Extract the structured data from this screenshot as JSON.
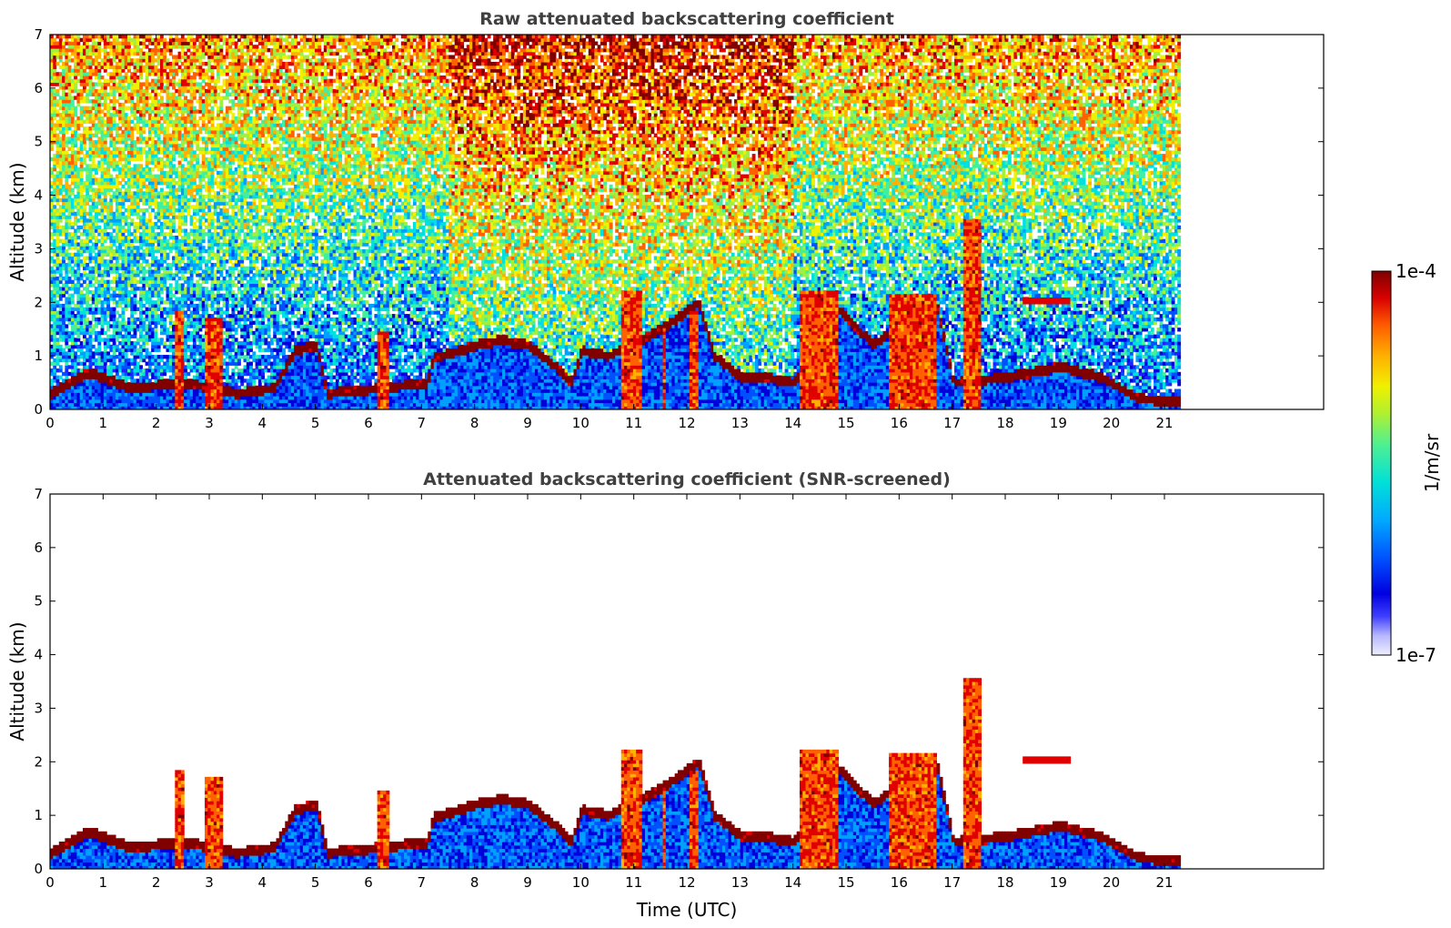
{
  "chart_data": [
    {
      "type": "heatmap",
      "title": "Raw attenuated backscattering coefficient",
      "xlabel": "",
      "ylabel": "Altitude (km)",
      "xlim": [
        0,
        24
      ],
      "ylim": [
        0,
        7
      ],
      "x_ticks": [
        "0",
        "1",
        "2",
        "3",
        "4",
        "5",
        "6",
        "7",
        "8",
        "9",
        "10",
        "11",
        "12",
        "13",
        "14",
        "15",
        "16",
        "17",
        "18",
        "19",
        "20",
        "21"
      ],
      "y_ticks": [
        "0",
        "1",
        "2",
        "3",
        "4",
        "5",
        "6",
        "7"
      ],
      "data_end_time": 21.3,
      "screened": false,
      "boundary_layer_top_km": [
        [
          0,
          0.3
        ],
        [
          0.7,
          0.7
        ],
        [
          1.5,
          0.4
        ],
        [
          2.5,
          0.5
        ],
        [
          3.5,
          0.3
        ],
        [
          4.2,
          0.4
        ],
        [
          4.6,
          1.1
        ],
        [
          5,
          1.2
        ],
        [
          5.2,
          0.3
        ],
        [
          6.2,
          0.4
        ],
        [
          7.1,
          0.5
        ],
        [
          7.2,
          0.95
        ],
        [
          8,
          1.2
        ],
        [
          8.5,
          1.3
        ],
        [
          9,
          1.2
        ],
        [
          9.5,
          0.8
        ],
        [
          9.8,
          0.5
        ],
        [
          10,
          1.1
        ],
        [
          10.5,
          1.0
        ],
        [
          11.5,
          1.5
        ],
        [
          12.2,
          2.0
        ],
        [
          12.5,
          1.0
        ],
        [
          13,
          0.6
        ],
        [
          13.5,
          0.6
        ],
        [
          14,
          0.5
        ],
        [
          14.8,
          1.9
        ],
        [
          15.5,
          1.2
        ],
        [
          16,
          1.6
        ],
        [
          16.7,
          1.9
        ],
        [
          17,
          0.5
        ],
        [
          18,
          0.6
        ],
        [
          19,
          0.8
        ],
        [
          19.8,
          0.6
        ],
        [
          20.5,
          0.2
        ],
        [
          21.3,
          0.15
        ]
      ],
      "convective_plumes": [
        {
          "t0": 2.3,
          "t1": 2.5,
          "top_km": 1.8
        },
        {
          "t0": 2.9,
          "t1": 3.2,
          "top_km": 1.7
        },
        {
          "t0": 6.15,
          "t1": 6.35,
          "top_km": 1.4
        },
        {
          "t0": 10.75,
          "t1": 11.15,
          "top_km": 2.2
        },
        {
          "t0": 11.5,
          "t1": 11.6,
          "top_km": 1.5
        },
        {
          "t0": 12.0,
          "t1": 12.2,
          "top_km": 1.8
        },
        {
          "t0": 14.1,
          "t1": 14.8,
          "top_km": 2.2
        },
        {
          "t0": 15.8,
          "t1": 16.7,
          "top_km": 2.1
        },
        {
          "t0": 17.2,
          "t1": 17.5,
          "top_km": 3.5
        }
      ],
      "elevated_layers": [
        {
          "t0": 18.3,
          "t1": 19.2,
          "alt_km": 2.0
        }
      ]
    },
    {
      "type": "heatmap",
      "title": "Attenuated backscattering coefficient (SNR-screened)",
      "xlabel": "Time (UTC)",
      "ylabel": "Altitude (km)",
      "xlim": [
        0,
        24
      ],
      "ylim": [
        0,
        7
      ],
      "x_ticks": [
        "0",
        "1",
        "2",
        "3",
        "4",
        "5",
        "6",
        "7",
        "8",
        "9",
        "10",
        "11",
        "12",
        "13",
        "14",
        "15",
        "16",
        "17",
        "18",
        "19",
        "20",
        "21"
      ],
      "y_ticks": [
        "0",
        "1",
        "2",
        "3",
        "4",
        "5",
        "6",
        "7"
      ],
      "data_end_time": 21.3,
      "screened": true
    }
  ],
  "colorbar": {
    "label": "1/m/sr",
    "max_label": "1e-4",
    "min_label": "1e-7",
    "scale": "log",
    "colors": [
      "#eeeeff",
      "#c8c8ff",
      "#9090ff",
      "#2020ff",
      "#0000d8",
      "#0050ff",
      "#00a0ff",
      "#00e0e0",
      "#40f0a0",
      "#a0f040",
      "#f0f000",
      "#ffb000",
      "#ff6000",
      "#e00000",
      "#800000"
    ]
  }
}
